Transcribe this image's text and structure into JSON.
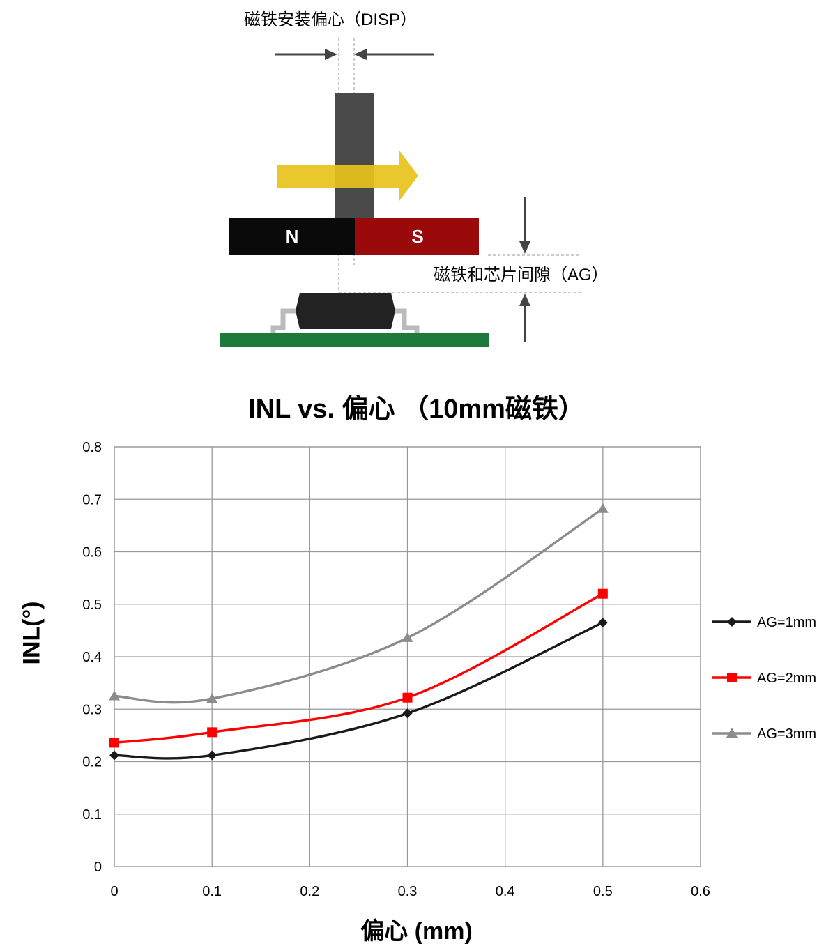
{
  "diagram": {
    "disp_label": "磁铁安装偏心（DISP）",
    "ag_label": "磁铁和芯片间隙（AG）",
    "north_label": "N",
    "south_label": "S",
    "colors": {
      "shaft": "#4a4a4a",
      "arrow": "#e8c21a",
      "magnet_north": "#0a0a0a",
      "magnet_south": "#9b0a0a",
      "chip": "#222222",
      "pcb": "#1e7a3a",
      "pin": "#bbbbbb"
    }
  },
  "chart_data": {
    "type": "line",
    "title": "INL vs. 偏心 （10mm磁铁）",
    "xlabel": "偏心 (mm)",
    "ylabel": "INL(°)",
    "xlim": [
      0,
      0.6
    ],
    "ylim": [
      0,
      0.8
    ],
    "xticks": [
      "0",
      "0.1",
      "0.2",
      "0.3",
      "0.4",
      "0.5",
      "0.6"
    ],
    "yticks": [
      "0",
      "0.1",
      "0.2",
      "0.3",
      "0.4",
      "0.5",
      "0.6",
      "0.7",
      "0.8"
    ],
    "grid": true,
    "smooth": true,
    "legend_position": "right",
    "x": [
      0,
      0.1,
      0.3,
      0.5
    ],
    "series": [
      {
        "name": "AG=1mm",
        "values": [
          0.212,
          0.212,
          0.292,
          0.465
        ],
        "color": "#1a1a1a",
        "marker": "diamond"
      },
      {
        "name": "AG=2mm",
        "values": [
          0.236,
          0.256,
          0.322,
          0.52
        ],
        "color": "#ff0000",
        "marker": "square"
      },
      {
        "name": "AG=3mm",
        "values": [
          0.325,
          0.32,
          0.436,
          0.682
        ],
        "color": "#8c8c8c",
        "marker": "triangle"
      }
    ]
  }
}
